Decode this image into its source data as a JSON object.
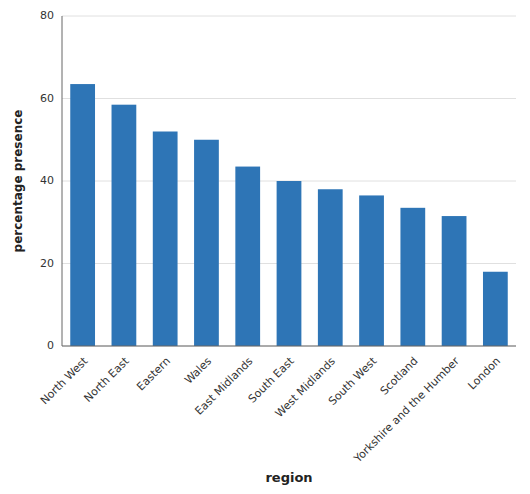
{
  "chart_data": {
    "type": "bar",
    "categories": [
      "North West",
      "North East",
      "Eastern",
      "Wales",
      "East Midlands",
      "South East",
      "West Midlands",
      "South West",
      "Scotland",
      "Yorkshire and the Humber",
      "London"
    ],
    "values": [
      63.5,
      58.5,
      52,
      50,
      43.5,
      40,
      38,
      36.5,
      33.5,
      31.5,
      18
    ],
    "color": "#2E75B6",
    "xlabel": "region",
    "ylabel": "percentage presence",
    "ylim": [
      0,
      80
    ],
    "yticks": [
      0,
      20,
      40,
      60,
      80
    ],
    "grid": true
  }
}
